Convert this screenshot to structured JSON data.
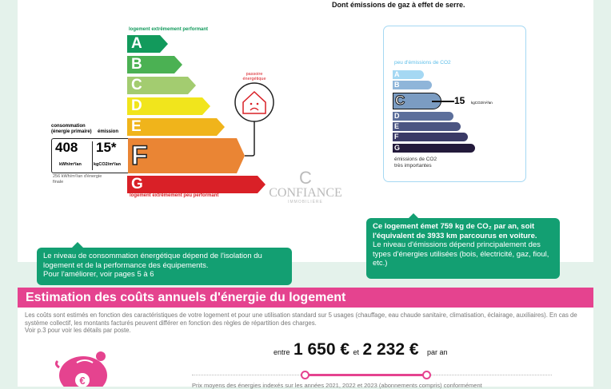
{
  "top_text": "Dont émissions de gaz à effet de serre.",
  "energy": {
    "top_label": "logement extrêmement performant",
    "bottom_label": "logement extrêmement peu performant",
    "classes": [
      {
        "letter": "A",
        "color": "#129a5c"
      },
      {
        "letter": "B",
        "color": "#4bb153"
      },
      {
        "letter": "C",
        "color": "#a3cc70"
      },
      {
        "letter": "D",
        "color": "#f1e51c"
      },
      {
        "letter": "E",
        "color": "#f0b41b"
      },
      {
        "letter": "F",
        "color": "#ea8534"
      },
      {
        "letter": "G",
        "color": "#d92027"
      }
    ],
    "current_class": "F",
    "consumption_label": "consommation (énergie primaire)",
    "emission_label": "émission",
    "consumption_value": "408",
    "consumption_unit": "kWh/m²/an",
    "emission_value": "15*",
    "emission_unit": "kgCO2/m²/an",
    "final_energy": "256 kWh/m²/an d'énergie finale",
    "passoire_label": "passoire énergétique"
  },
  "co2": {
    "top_label": "peu d'émissions de CO2",
    "bottom_label_1": "émissions de CO2",
    "bottom_label_2": "très importantes",
    "classes": [
      {
        "letter": "A",
        "color": "#a5d8f3"
      },
      {
        "letter": "B",
        "color": "#8fb5d9"
      },
      {
        "letter": "C",
        "color": "#7b9cc2"
      },
      {
        "letter": "D",
        "color": "#5c6f9b"
      },
      {
        "letter": "E",
        "color": "#4b5582"
      },
      {
        "letter": "F",
        "color": "#3a3a66"
      },
      {
        "letter": "G",
        "color": "#231a3b"
      }
    ],
    "current_class": "C",
    "value": "15",
    "unit": "kgCO2/m²/an"
  },
  "callout_left": {
    "line1": "Le niveau de consommation énergétique dépend de l'isolation du logement et de la performance des équipements.",
    "line2": "Pour l'améliorer, voir pages 5 à 6"
  },
  "callout_right": {
    "bold": "Ce logement émet 759  kg de CO₂ par an, soit l'équivalent de 3933 km parcourus en voiture.",
    "text": "Le niveau d'émissions dépend principalement des types d'énergies utilisées (bois, électricité, gaz, fioul, etc.)"
  },
  "watermark": {
    "brand": "CONFIANCE",
    "sub": "IMMOBILIÈRE"
  },
  "costs": {
    "title": "Estimation des coûts annuels d'énergie du logement",
    "description": "Les coûts sont estimés en fonction des caractéristiques de votre logement et pour une utilisation standard sur 5 usages (chauffage, eau chaude sanitaire, climatisation, éclairage, auxiliaires). En cas de système collectif, les montants facturés peuvent différer en fonction des règles de répartition des charges.",
    "see_details": "Voir p.3 pour voir les détails par poste.",
    "between": "entre",
    "min": "1 650 €",
    "and": "et",
    "max": "2 232 €",
    "per_year": "par an",
    "footnote": "Prix moyens des énergies indexés sur les années 2021, 2022 et 2023 (abonnements compris) conformément",
    "accent": "#e5438f"
  }
}
